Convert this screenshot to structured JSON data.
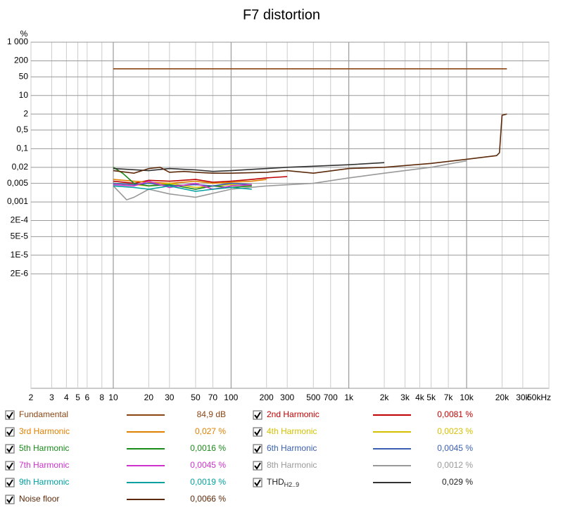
{
  "chart_data": {
    "type": "line",
    "title": "F7 distortion",
    "y_unit": "%",
    "xscale": "log",
    "yscale": "log",
    "grid": true,
    "xlim": [
      2,
      50000
    ],
    "ylim": [
      1e-10,
      1000
    ],
    "xticks": [
      2,
      3,
      4,
      5,
      6,
      8,
      10,
      20,
      30,
      50,
      70,
      100,
      200,
      300,
      500,
      700,
      {
        "value": 1000,
        "label": "1k"
      },
      {
        "value": 2000,
        "label": "2k"
      },
      {
        "value": 3000,
        "label": "3k"
      },
      {
        "value": 4000,
        "label": "4k"
      },
      {
        "value": 5000,
        "label": "5k"
      },
      {
        "value": 7000,
        "label": "7k"
      },
      {
        "value": 10000,
        "label": "10k"
      },
      {
        "value": 20000,
        "label": "20k"
      },
      {
        "value": 30000,
        "label": "30k"
      },
      {
        "value": 50000,
        "label": "50kHz"
      }
    ],
    "yticks": [
      {
        "value": 1000,
        "label": "1 000"
      },
      200,
      50,
      10,
      2,
      {
        "value": 0.5,
        "label": "0,5"
      },
      {
        "value": 0.1,
        "label": "0,1"
      },
      {
        "value": 0.02,
        "label": "0,02"
      },
      {
        "value": 0.005,
        "label": "0,005"
      },
      {
        "value": 0.001,
        "label": "0,001"
      },
      {
        "value": 0.0002,
        "label": "2E-4"
      },
      {
        "value": 5e-05,
        "label": "5E-5"
      },
      {
        "value": 1e-05,
        "label": "1E-5"
      },
      {
        "value": 2e-06,
        "label": "2E-6"
      }
    ],
    "series": [
      {
        "name": "Fundamental",
        "color": "#8b4513",
        "reading": "84,9 dB",
        "x": [
          10,
          22000
        ],
        "values": [
          100,
          100
        ]
      },
      {
        "name": "2nd Harmonic",
        "color": "#c00000",
        "reading": "0,0081 %",
        "x": [
          10,
          15,
          20,
          30,
          50,
          70,
          100,
          150,
          200,
          300
        ],
        "values": [
          0.006,
          0.005,
          0.0065,
          0.006,
          0.007,
          0.0055,
          0.006,
          0.007,
          0.008,
          0.009
        ]
      },
      {
        "name": "3rd Harmonic",
        "color": "#e08000",
        "reading": "0,027 %",
        "x": [
          10,
          15,
          20,
          30,
          50,
          70,
          100,
          150,
          200
        ],
        "values": [
          0.007,
          0.006,
          0.0055,
          0.005,
          0.006,
          0.005,
          0.0055,
          0.006,
          0.007
        ]
      },
      {
        "name": "4th Harmonic",
        "color": "#d4c000",
        "reading": "0,0023 %",
        "x": [
          10,
          15,
          20,
          30,
          50,
          70,
          100,
          150
        ],
        "values": [
          0.005,
          0.0045,
          0.004,
          0.005,
          0.0035,
          0.004,
          0.0045,
          0.004
        ]
      },
      {
        "name": "5th Harmonic",
        "color": "#1a8a1a",
        "reading": "0,0016 %",
        "x": [
          10,
          12,
          15,
          20,
          30,
          50,
          70,
          100,
          150
        ],
        "values": [
          0.02,
          0.012,
          0.005,
          0.004,
          0.0045,
          0.003,
          0.004,
          0.0035,
          0.004
        ]
      },
      {
        "name": "6th Harmonic",
        "color": "#3a5fb0",
        "reading": "0,0045 %",
        "x": [
          10,
          15,
          20,
          30,
          50,
          70,
          100,
          150
        ],
        "values": [
          0.005,
          0.0045,
          0.005,
          0.004,
          0.0045,
          0.004,
          0.005,
          0.0045
        ]
      },
      {
        "name": "7th Harmonic",
        "color": "#cc33cc",
        "reading": "0,0045 %",
        "x": [
          10,
          15,
          20,
          30,
          50,
          70,
          100,
          150
        ],
        "values": [
          0.0045,
          0.004,
          0.006,
          0.0035,
          0.005,
          0.003,
          0.004,
          0.0045
        ]
      },
      {
        "name": "8th Harmonic",
        "color": "#999999",
        "reading": "0,0012 %",
        "x": [
          10,
          13,
          15,
          20,
          30,
          50,
          100,
          200,
          500,
          1000,
          2000,
          5000,
          10000
        ],
        "values": [
          0.004,
          0.0012,
          0.0015,
          0.003,
          0.002,
          0.0015,
          0.003,
          0.004,
          0.005,
          0.008,
          0.012,
          0.02,
          0.035
        ]
      },
      {
        "name": "9th Harmonic",
        "color": "#00a0a0",
        "reading": "0,0019 %",
        "x": [
          10,
          15,
          20,
          30,
          50,
          70,
          100,
          150
        ],
        "values": [
          0.004,
          0.0035,
          0.003,
          0.004,
          0.0025,
          0.003,
          0.0035,
          0.003
        ]
      },
      {
        "name": "THD",
        "name_sub": "H2..9",
        "color": "#333333",
        "reading": "0,029 %",
        "x": [
          10,
          20,
          30,
          50,
          70,
          100,
          200,
          300,
          500,
          1000,
          2000
        ],
        "values": [
          0.018,
          0.015,
          0.018,
          0.016,
          0.014,
          0.015,
          0.018,
          0.02,
          0.022,
          0.025,
          0.03
        ]
      },
      {
        "name": "Noise floor",
        "color": "#5c2a0a",
        "reading": "0,0066 %",
        "x": [
          10,
          15,
          20,
          25,
          30,
          40,
          50,
          70,
          100,
          200,
          300,
          500,
          1000,
          2000,
          5000,
          10000,
          15000,
          18000,
          19000,
          20000,
          22000
        ],
        "values": [
          0.015,
          0.012,
          0.018,
          0.02,
          0.013,
          0.014,
          0.013,
          0.012,
          0.012,
          0.013,
          0.015,
          0.012,
          0.018,
          0.02,
          0.028,
          0.04,
          0.05,
          0.055,
          0.07,
          1.8,
          2
        ]
      }
    ]
  }
}
